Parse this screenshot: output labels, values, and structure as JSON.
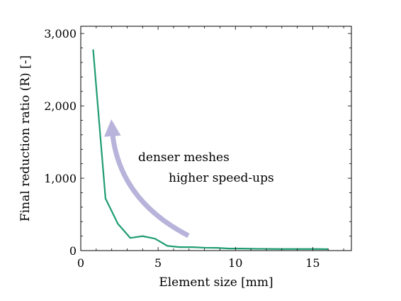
{
  "chart_data": {
    "type": "line",
    "xlabel": "Element size [mm]",
    "ylabel": "Final reduction ratio (R) [-]",
    "xlim": [
      0,
      17.5
    ],
    "ylim": [
      0,
      3100
    ],
    "x_ticks": [
      0,
      5,
      10,
      15
    ],
    "x_tick_labels": [
      "0",
      "5",
      "10",
      "15"
    ],
    "y_ticks": [
      0,
      1000,
      2000,
      3000
    ],
    "y_tick_labels": [
      "0",
      "1,000",
      "2,000",
      "3,000"
    ],
    "grid": false,
    "series": [
      {
        "color": "#1f9d73",
        "x": [
          0.8,
          1.6,
          2.4,
          3.2,
          4.0,
          4.8,
          5.6,
          6.4,
          7.2,
          8.0,
          8.8,
          9.6,
          10.4,
          11.2,
          12.0,
          12.8,
          13.6,
          14.4,
          15.2,
          16.0
        ],
        "y": [
          2780,
          720,
          370,
          175,
          200,
          165,
          65,
          48,
          48,
          40,
          38,
          28,
          28,
          25,
          24,
          22,
          22,
          22,
          22,
          20
        ]
      }
    ],
    "annotations": [
      {
        "text": "denser meshes"
      },
      {
        "text": "higher speed-ups"
      }
    ],
    "arrow_color": "#b7b3da"
  }
}
